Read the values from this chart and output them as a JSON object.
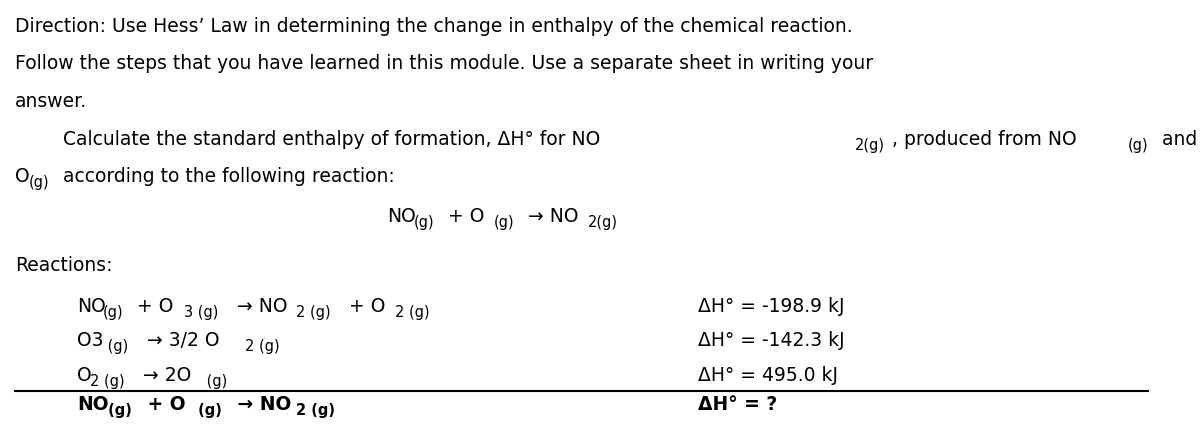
{
  "bg_color": "#ffffff",
  "text_color": "#000000",
  "fig_width": 12.0,
  "fig_height": 4.45,
  "direction_line1": "Direction: Use Hess’ Law in determining the change in enthalpy of the chemical reaction.",
  "direction_line2": "Follow the steps that you have learned in this module. Use a separate sheet in writing your",
  "direction_line3": "answer.",
  "reactions_label": "Reactions:",
  "rxn1_dH": "ΔH° = -198.9 kJ",
  "rxn2_dH": "ΔH° = -142.3 kJ",
  "rxn3_dH": "ΔH° = 495.0 kJ",
  "final_dH": "ΔH° = ?"
}
